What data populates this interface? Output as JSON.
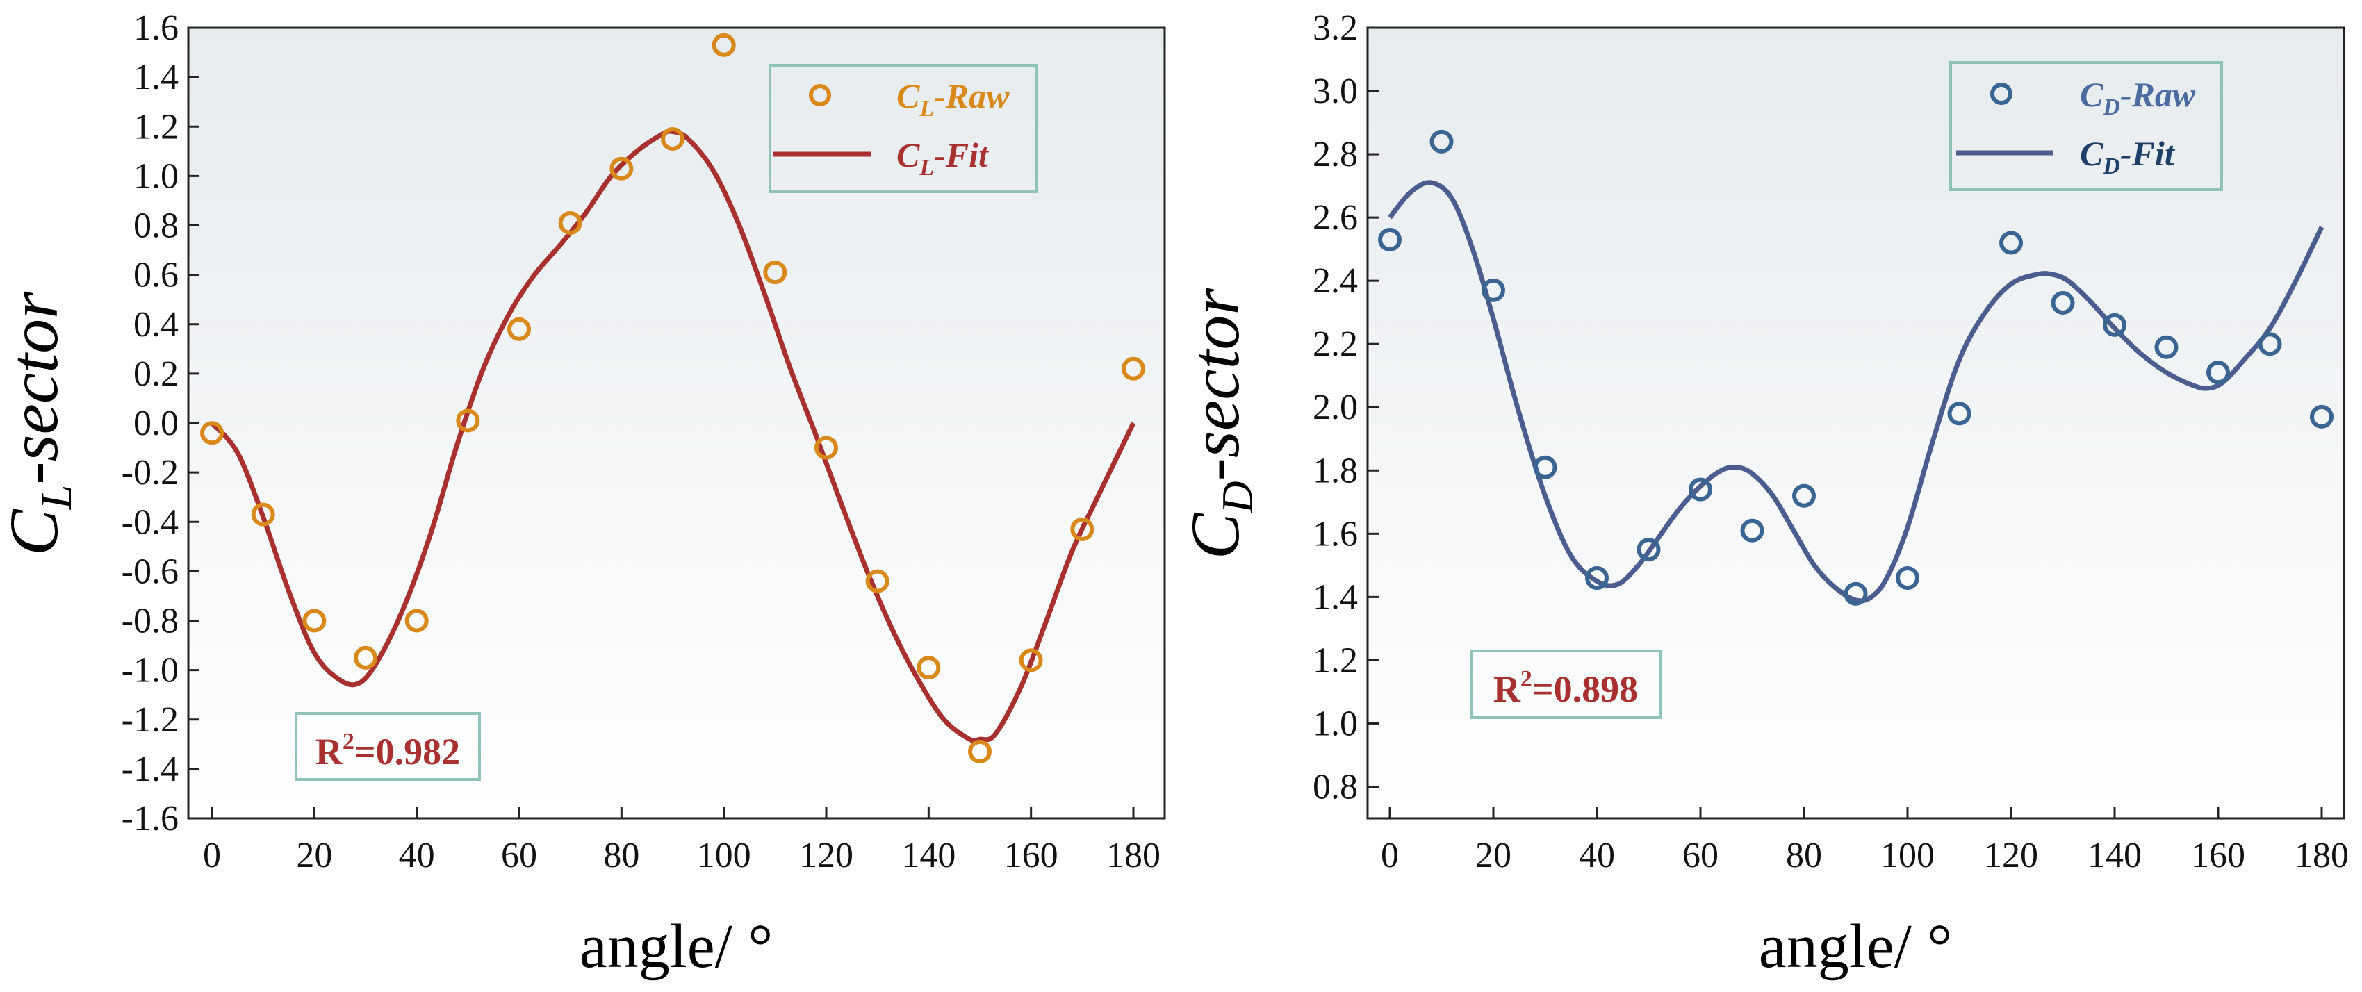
{
  "chart_data": [
    {
      "type": "scatter+line",
      "ylabel": {
        "main": "C",
        "sub": "L",
        "rest": "-sector"
      },
      "xlabel": "angle/ °",
      "xlim": [
        0,
        180
      ],
      "ylim": [
        -1.6,
        1.6
      ],
      "x_ticks": [
        "0",
        "20",
        "40",
        "60",
        "80",
        "100",
        "120",
        "140",
        "160",
        "180"
      ],
      "y_ticks": [
        "-1.6",
        "-1.4",
        "-1.2",
        "-1.0",
        "-0.8",
        "-0.6",
        "-0.4",
        "-0.2",
        "0.0",
        "0.2",
        "0.4",
        "0.6",
        "0.8",
        "1.0",
        "1.2",
        "1.4",
        "1.6"
      ],
      "raw": {
        "x": [
          0,
          10,
          20,
          30,
          40,
          50,
          60,
          70,
          80,
          90,
          100,
          110,
          120,
          130,
          140,
          150,
          160,
          170,
          180
        ],
        "y": [
          -0.04,
          -0.37,
          -0.8,
          -0.95,
          -0.8,
          0.01,
          0.38,
          0.81,
          1.03,
          1.15,
          1.53,
          0.61,
          -0.1,
          -0.64,
          -0.99,
          -1.33,
          -0.96,
          -0.43,
          0.22
        ]
      },
      "fit": {
        "x": [
          0,
          5,
          10,
          15,
          20,
          25,
          29,
          33,
          38,
          43,
          48,
          53,
          58,
          63,
          68,
          73,
          78,
          83,
          88,
          90,
          93,
          98,
          103,
          108,
          113,
          118,
          123,
          128,
          133,
          138,
          143,
          148,
          150,
          153,
          158,
          163,
          168,
          173,
          180
        ],
        "y": [
          0.0,
          -0.12,
          -0.38,
          -0.68,
          -0.93,
          -1.04,
          -1.05,
          -0.94,
          -0.72,
          -0.43,
          -0.08,
          0.22,
          0.44,
          0.6,
          0.72,
          0.85,
          1.0,
          1.1,
          1.17,
          1.18,
          1.15,
          1.02,
          0.8,
          0.52,
          0.22,
          -0.05,
          -0.33,
          -0.6,
          -0.84,
          -1.04,
          -1.2,
          -1.28,
          -1.28,
          -1.26,
          -1.07,
          -0.8,
          -0.52,
          -0.3,
          0.0
        ]
      },
      "legend": [
        {
          "main": "C",
          "sub": "L",
          "rest": "-Raw"
        },
        {
          "main": "C",
          "sub": "L",
          "rest": "-Fit"
        }
      ],
      "legend_position": "top-right",
      "annotation": {
        "pre": "R",
        "sup": "2",
        "post": "=0.982"
      },
      "colors": {
        "raw": "#d9891a",
        "fit": "#a8302e",
        "legend_raw_text": "#d9891a",
        "legend_fit_text": "#a8302e",
        "annotation_text": "#a8302e"
      }
    },
    {
      "type": "scatter+line",
      "ylabel": {
        "main": "C",
        "sub": "D",
        "rest": "-sector"
      },
      "xlabel": "angle/ °",
      "xlim": [
        0,
        180
      ],
      "ylim": [
        0.7,
        3.2
      ],
      "x_ticks": [
        "0",
        "20",
        "40",
        "60",
        "80",
        "100",
        "120",
        "140",
        "160",
        "180"
      ],
      "y_ticks": [
        "0.8",
        "1.0",
        "1.2",
        "1.4",
        "1.6",
        "1.8",
        "2.0",
        "2.2",
        "2.4",
        "2.6",
        "2.8",
        "3.0",
        "3.2"
      ],
      "raw": {
        "x": [
          0,
          10,
          20,
          30,
          40,
          50,
          60,
          70,
          80,
          90,
          100,
          110,
          120,
          130,
          140,
          150,
          160,
          170,
          180
        ],
        "y": [
          2.53,
          2.84,
          2.37,
          1.81,
          1.46,
          1.55,
          1.74,
          1.61,
          1.72,
          1.41,
          1.46,
          1.98,
          2.52,
          2.33,
          2.26,
          2.19,
          2.11,
          2.2,
          1.97
        ]
      },
      "fit": {
        "x": [
          0,
          4,
          8,
          12,
          16,
          20,
          25,
          30,
          35,
          40,
          44,
          48,
          52,
          56,
          60,
          64,
          67,
          70,
          74,
          78,
          82,
          86,
          90,
          93,
          96,
          100,
          105,
          110,
          115,
          120,
          125,
          128,
          131,
          135,
          140,
          145,
          150,
          155,
          158,
          161,
          165,
          170,
          175,
          180
        ],
        "y": [
          2.6,
          2.68,
          2.71,
          2.66,
          2.5,
          2.28,
          1.98,
          1.72,
          1.53,
          1.45,
          1.44,
          1.5,
          1.59,
          1.68,
          1.75,
          1.8,
          1.81,
          1.79,
          1.72,
          1.61,
          1.5,
          1.43,
          1.39,
          1.4,
          1.46,
          1.62,
          1.9,
          2.15,
          2.3,
          2.39,
          2.42,
          2.42,
          2.4,
          2.34,
          2.25,
          2.17,
          2.11,
          2.07,
          2.06,
          2.08,
          2.15,
          2.25,
          2.4,
          2.57
        ]
      },
      "legend": [
        {
          "main": "C",
          "sub": "D",
          "rest": "-Raw"
        },
        {
          "main": "C",
          "sub": "D",
          "rest": "-Fit"
        }
      ],
      "legend_position": "top-right",
      "annotation": {
        "pre": "R",
        "sup": "2",
        "post": "=0.898"
      },
      "colors": {
        "raw": "#3a6592",
        "fit": "#4a5d8e",
        "legend_raw_text": "#4a6aa0",
        "legend_fit_text": "#1f3f6b",
        "annotation_text": "#a8302e"
      }
    }
  ]
}
